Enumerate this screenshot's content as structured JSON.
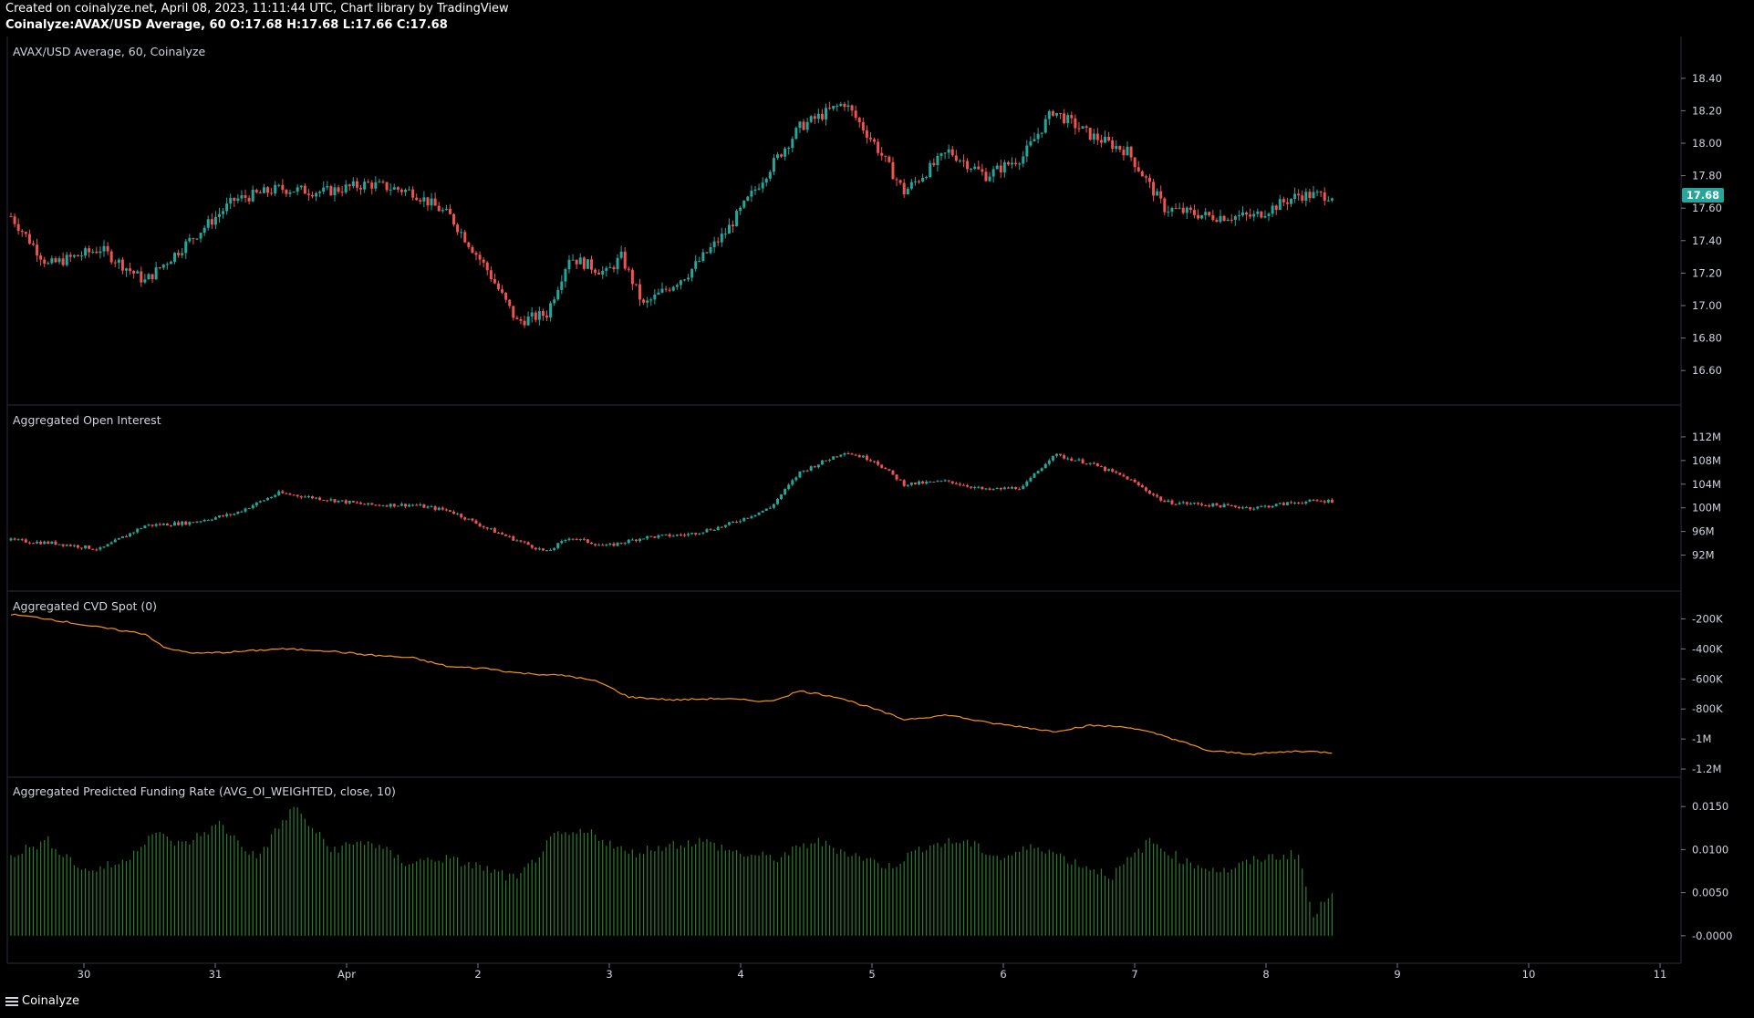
{
  "header": {
    "line1": "Created on coinalyze.net, April 08, 2023, 11:11:44 UTC, Chart library by TradingView",
    "line2": "Coinalyze:AVAX/USD Average, 60 O:17.68 H:17.68 L:17.66 C:17.68"
  },
  "footer": {
    "brand": "Coinalyze"
  },
  "colors": {
    "up": "#26a69a",
    "down": "#ef5350",
    "cvd": "#f7931a",
    "funding": "#2e7d32",
    "price_badge": "#26a69a"
  },
  "chart_data": [
    {
      "type": "candlestick",
      "title": "AVAX/USD Average, 60, Coinalyze",
      "ylim": [
        16.5,
        18.5
      ],
      "y_ticks": [
        "18.40",
        "18.20",
        "18.00",
        "17.80",
        "17.60",
        "17.40",
        "17.20",
        "17.00",
        "16.80",
        "16.60"
      ],
      "last_price": "17.68",
      "x_ticks": [
        "30",
        "31",
        "Apr",
        "2",
        "3",
        "4",
        "5",
        "6",
        "7",
        "8",
        "9",
        "10",
        "11"
      ],
      "close_anchors": [
        [
          0,
          17.55
        ],
        [
          10,
          17.25
        ],
        [
          24,
          17.35
        ],
        [
          36,
          17.15
        ],
        [
          48,
          17.4
        ],
        [
          60,
          17.65
        ],
        [
          72,
          17.72
        ],
        [
          84,
          17.7
        ],
        [
          96,
          17.75
        ],
        [
          108,
          17.7
        ],
        [
          118,
          17.55
        ],
        [
          128,
          17.22
        ],
        [
          136,
          16.9
        ],
        [
          144,
          16.95
        ],
        [
          150,
          17.3
        ],
        [
          160,
          17.2
        ],
        [
          164,
          17.3
        ],
        [
          170,
          17.0
        ],
        [
          182,
          17.2
        ],
        [
          192,
          17.45
        ],
        [
          204,
          17.85
        ],
        [
          212,
          18.1
        ],
        [
          224,
          18.25
        ],
        [
          232,
          18.0
        ],
        [
          240,
          17.7
        ],
        [
          252,
          17.95
        ],
        [
          262,
          17.8
        ],
        [
          272,
          17.92
        ],
        [
          280,
          18.2
        ],
        [
          290,
          18.05
        ],
        [
          300,
          17.95
        ],
        [
          310,
          17.6
        ],
        [
          322,
          17.55
        ],
        [
          334,
          17.55
        ],
        [
          346,
          17.68
        ],
        [
          355,
          17.68
        ]
      ]
    },
    {
      "type": "candlestick",
      "title": "Aggregated Open Interest",
      "ylim": [
        89,
        114
      ],
      "y_ticks": [
        "112M",
        "108M",
        "104M",
        "100M",
        "96M",
        "92M"
      ],
      "close_anchors": [
        [
          0,
          94.5
        ],
        [
          12,
          94.0
        ],
        [
          24,
          93.0
        ],
        [
          36,
          97.0
        ],
        [
          48,
          97.5
        ],
        [
          60,
          99.0
        ],
        [
          72,
          102.5
        ],
        [
          84,
          101.5
        ],
        [
          96,
          100.5
        ],
        [
          108,
          100.5
        ],
        [
          118,
          99.5
        ],
        [
          128,
          96.5
        ],
        [
          136,
          94.5
        ],
        [
          144,
          92.5
        ],
        [
          150,
          95.0
        ],
        [
          160,
          93.5
        ],
        [
          170,
          95.0
        ],
        [
          182,
          95.5
        ],
        [
          192,
          97.0
        ],
        [
          204,
          100.0
        ],
        [
          212,
          106.0
        ],
        [
          224,
          109.5
        ],
        [
          232,
          108.0
        ],
        [
          240,
          104.0
        ],
        [
          252,
          104.5
        ],
        [
          262,
          103.0
        ],
        [
          272,
          103.5
        ],
        [
          280,
          109.0
        ],
        [
          290,
          107.5
        ],
        [
          300,
          105.0
        ],
        [
          310,
          101.0
        ],
        [
          322,
          100.5
        ],
        [
          334,
          100.0
        ],
        [
          346,
          101.0
        ],
        [
          355,
          101.2
        ]
      ]
    },
    {
      "type": "line",
      "title": "Aggregated CVD Spot (0)",
      "ylim": [
        -1.23,
        -0.1
      ],
      "y_ticks": [
        "-200K",
        "-400K",
        "-600K",
        "-800K",
        "-1M",
        "-1.2M"
      ],
      "anchors": [
        [
          0,
          -0.17
        ],
        [
          10,
          -0.2
        ],
        [
          22,
          -0.25
        ],
        [
          36,
          -0.3
        ],
        [
          42,
          -0.4
        ],
        [
          50,
          -0.43
        ],
        [
          60,
          -0.42
        ],
        [
          72,
          -0.4
        ],
        [
          84,
          -0.41
        ],
        [
          96,
          -0.44
        ],
        [
          108,
          -0.46
        ],
        [
          118,
          -0.52
        ],
        [
          128,
          -0.53
        ],
        [
          136,
          -0.56
        ],
        [
          150,
          -0.58
        ],
        [
          158,
          -0.62
        ],
        [
          166,
          -0.72
        ],
        [
          178,
          -0.74
        ],
        [
          190,
          -0.73
        ],
        [
          204,
          -0.75
        ],
        [
          212,
          -0.68
        ],
        [
          222,
          -0.72
        ],
        [
          232,
          -0.8
        ],
        [
          240,
          -0.87
        ],
        [
          252,
          -0.84
        ],
        [
          262,
          -0.89
        ],
        [
          272,
          -0.92
        ],
        [
          280,
          -0.95
        ],
        [
          290,
          -0.91
        ],
        [
          300,
          -0.92
        ],
        [
          310,
          -0.98
        ],
        [
          322,
          -1.08
        ],
        [
          334,
          -1.1
        ],
        [
          346,
          -1.08
        ],
        [
          355,
          -1.09
        ]
      ]
    },
    {
      "type": "bar",
      "title": "Aggregated Predicted Funding Rate (AVG_OI_WEIGHTED, close, 10)",
      "ylim": [
        -0.0015,
        0.0165
      ],
      "y_ticks": [
        "0.0150",
        "0.0100",
        "0.0050",
        "-0.0000"
      ],
      "anchors": [
        [
          0,
          0.0095
        ],
        [
          10,
          0.011
        ],
        [
          20,
          0.0075
        ],
        [
          30,
          0.0085
        ],
        [
          38,
          0.012
        ],
        [
          46,
          0.0105
        ],
        [
          56,
          0.013
        ],
        [
          66,
          0.009
        ],
        [
          76,
          0.015
        ],
        [
          86,
          0.01
        ],
        [
          96,
          0.011
        ],
        [
          106,
          0.0085
        ],
        [
          116,
          0.009
        ],
        [
          126,
          0.008
        ],
        [
          136,
          0.0065
        ],
        [
          146,
          0.0115
        ],
        [
          156,
          0.012
        ],
        [
          166,
          0.0095
        ],
        [
          176,
          0.0105
        ],
        [
          186,
          0.011
        ],
        [
          196,
          0.0095
        ],
        [
          206,
          0.009
        ],
        [
          216,
          0.011
        ],
        [
          226,
          0.0095
        ],
        [
          236,
          0.008
        ],
        [
          246,
          0.0105
        ],
        [
          256,
          0.011
        ],
        [
          266,
          0.009
        ],
        [
          276,
          0.0105
        ],
        [
          286,
          0.0085
        ],
        [
          296,
          0.007
        ],
        [
          306,
          0.011
        ],
        [
          316,
          0.0085
        ],
        [
          326,
          0.0075
        ],
        [
          336,
          0.009
        ],
        [
          346,
          0.0095
        ],
        [
          350,
          0.002
        ],
        [
          355,
          0.0055
        ]
      ]
    }
  ]
}
